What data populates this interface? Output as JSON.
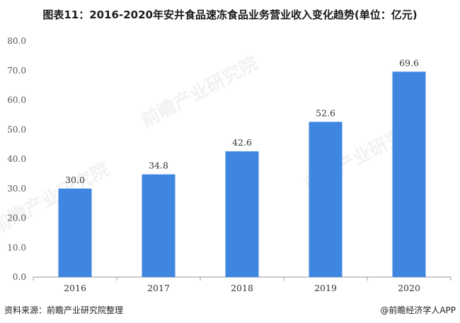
{
  "title": "图表11：2016-2020年安井食品速冻食品业务营业收入变化趋势(单位：亿元)",
  "source": "资料来源：前瞻产业研究院整理",
  "brand": "@前瞻经济学人APP",
  "watermark": "前瞻产业研究院",
  "colors": {
    "bar": "#3f86e0",
    "axis": "#999999",
    "grid": "#e0e0e0"
  },
  "chart_data": {
    "type": "bar",
    "categories": [
      "2016",
      "2017",
      "2018",
      "2019",
      "2020"
    ],
    "values": [
      30.0,
      34.8,
      42.6,
      52.6,
      69.6
    ],
    "data_labels": [
      "30.0",
      "34.8",
      "42.6",
      "52.6",
      "69.6"
    ],
    "yticks": [
      "0.0",
      "10.0",
      "20.0",
      "30.0",
      "40.0",
      "50.0",
      "60.0",
      "70.0",
      "80.0"
    ],
    "ylim": [
      0,
      80
    ],
    "grid": false,
    "xlabel": "",
    "ylabel": ""
  }
}
